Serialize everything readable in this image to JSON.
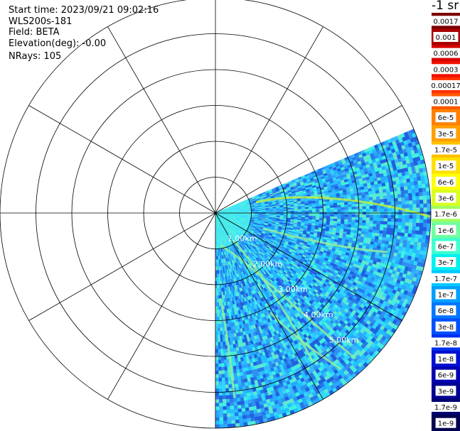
{
  "info": {
    "start_time": "Start time: 2023/09/21 09:02:16",
    "instrument": "WLS200s-181",
    "field": "Field: BETA",
    "elevation": "Elevation(deg): -0.00",
    "nrays": "NRays: 105"
  },
  "colorbar": {
    "unit": "-1 sr",
    "ticks": [
      "0.0017",
      "0.001",
      "0.0006",
      "0.0003",
      "0.00017",
      "0.0001",
      "6e-5",
      "3e-5",
      "1.7e-5",
      "1e-5",
      "6e-6",
      "3e-6",
      "1.7e-6",
      "1e-6",
      "6e-7",
      "3e-7",
      "1.7e-7",
      "1e-7",
      "6e-8",
      "3e-8",
      "1.7e-8",
      "1e-8",
      "6e-9",
      "3e-9",
      "1.7e-9",
      "1e-9"
    ],
    "colors": [
      "#7a0000",
      "#a80000",
      "#d40000",
      "#f01000",
      "#ff3000",
      "#ff5a00",
      "#ff8000",
      "#ffa000",
      "#ffc000",
      "#ffe000",
      "#ffff00",
      "#d8ff20",
      "#a0ff60",
      "#70ffa0",
      "#40ffd0",
      "#00f0f0",
      "#00c8ff",
      "#00a0ff",
      "#0078ff",
      "#0050ff",
      "#0030f0",
      "#0010d0",
      "#0000b0",
      "#000090",
      "#000070",
      "#000050"
    ]
  },
  "chart_data": {
    "type": "ppi",
    "range_rings_km": [
      "1.00km",
      "2.00km",
      "3.00km",
      "4.00km",
      "5.00km"
    ],
    "max_range_km": 6,
    "azimuth_spokes_deg": [
      0,
      30,
      60,
      90,
      120,
      150,
      180,
      210,
      240,
      270,
      300,
      330
    ],
    "scan_sector_deg": [
      67,
      180
    ],
    "nrays": 105
  }
}
